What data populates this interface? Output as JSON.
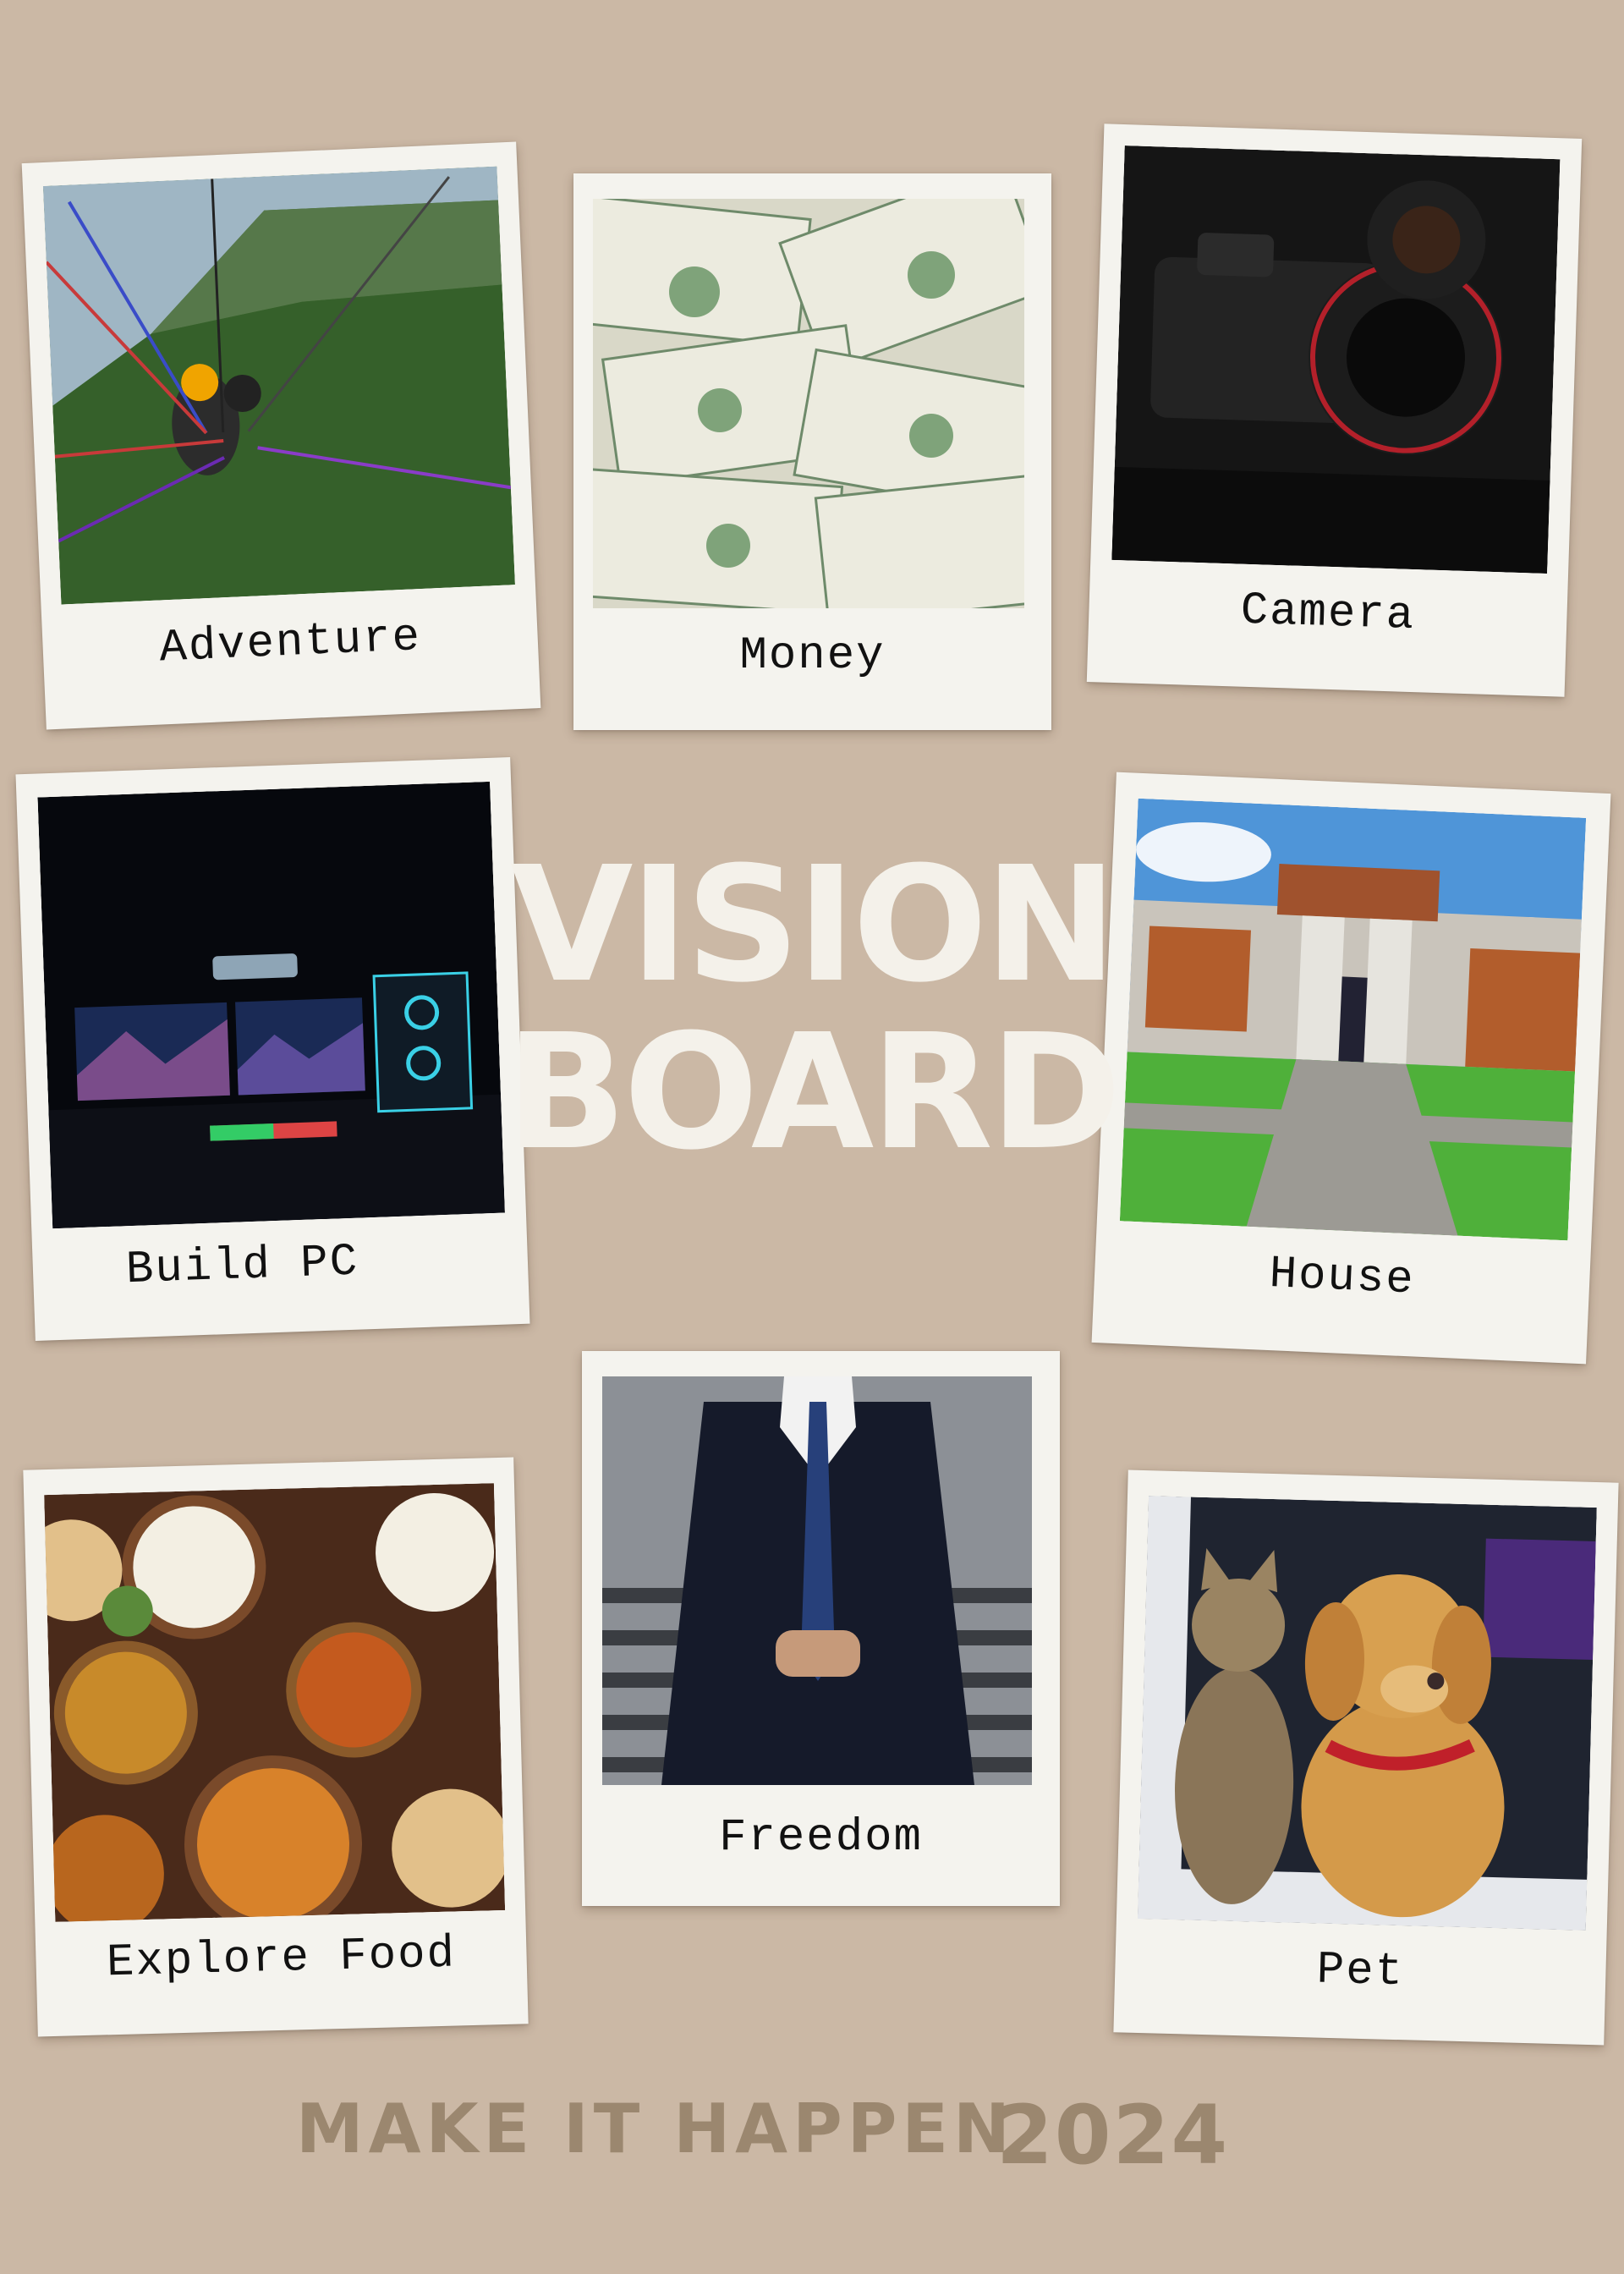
{
  "board": {
    "title_line1": "VISION",
    "title_line2": "BOARD",
    "slogan": "MAKE IT HAPPEN",
    "year": "2024",
    "background_color": "#cbb8a5",
    "frame_color": "#f4f3ee"
  },
  "cards": [
    {
      "caption": "Adventure"
    },
    {
      "caption": "Money"
    },
    {
      "caption": "Camera"
    },
    {
      "caption": "Build PC"
    },
    {
      "caption": "House"
    },
    {
      "caption": "Explore Food"
    },
    {
      "caption": "Freedom"
    },
    {
      "caption": "Pet"
    }
  ]
}
